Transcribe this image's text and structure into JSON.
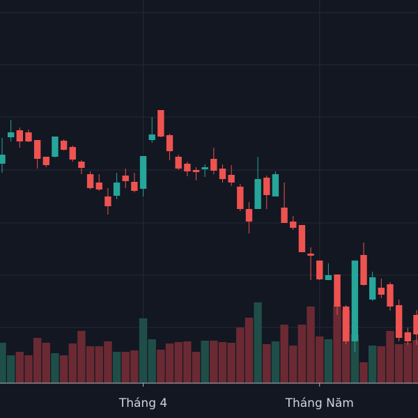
{
  "chart_data": {
    "type": "candlestick",
    "categories": [
      null,
      null,
      null,
      null,
      null,
      null,
      null,
      null,
      null,
      null,
      null,
      null,
      null,
      null,
      null,
      null,
      null,
      null,
      null,
      null,
      null,
      null,
      null,
      null,
      null,
      null,
      null,
      null,
      null,
      null,
      null,
      null,
      null,
      null,
      null,
      null,
      null,
      null,
      null,
      null,
      null,
      null,
      null,
      null,
      null,
      null,
      null,
      null
    ],
    "open": [
      315,
      353,
      363,
      360,
      349,
      325,
      325,
      348,
      339,
      318,
      300,
      288,
      268,
      269,
      298,
      289,
      279,
      349,
      392,
      356,
      325,
      315,
      306,
      307,
      322,
      308,
      299,
      282,
      250,
      250,
      295,
      268,
      252,
      232,
      227,
      186,
      176,
      148,
      156,
      110,
      60,
      184,
      120,
      137,
      142,
      112,
      73,
      98
    ],
    "close": [
      328,
      360,
      347,
      347,
      322,
      313,
      354,
      335,
      321,
      309,
      280,
      278,
      254,
      288,
      290,
      276,
      326,
      357,
      354,
      333,
      308,
      304,
      303,
      310,
      305,
      293,
      288,
      250,
      232,
      293,
      270,
      300,
      230,
      223,
      188,
      183,
      149,
      155,
      110,
      60,
      176,
      141,
      152,
      127,
      110,
      65,
      60,
      70
    ],
    "high": [
      352,
      378,
      367,
      364,
      349,
      325,
      354,
      350,
      341,
      320,
      304,
      300,
      280,
      302,
      308,
      302,
      326,
      382,
      392,
      358,
      328,
      318,
      310,
      314,
      338,
      314,
      313,
      286,
      260,
      325,
      298,
      304,
      288,
      240,
      227,
      195,
      176,
      172,
      156,
      112,
      176,
      202,
      160,
      150,
      145,
      120,
      80,
      105
    ],
    "low": [
      302,
      347,
      338,
      346,
      308,
      310,
      324,
      334,
      318,
      300,
      278,
      276,
      242,
      264,
      280,
      274,
      268,
      345,
      353,
      320,
      306,
      297,
      291,
      296,
      300,
      288,
      283,
      247,
      215,
      250,
      250,
      268,
      230,
      220,
      188,
      148,
      148,
      148,
      98,
      56,
      45,
      140,
      118,
      122,
      104,
      60,
      55,
      55
    ],
    "volume": [
      58,
      40,
      45,
      40,
      65,
      58,
      43,
      40,
      57,
      75,
      53,
      53,
      60,
      45,
      45,
      47,
      93,
      63,
      48,
      57,
      59,
      60,
      45,
      61,
      61,
      59,
      58,
      80,
      94,
      116,
      56,
      60,
      84,
      54,
      84,
      110,
      67,
      63,
      112,
      105,
      70,
      30,
      54,
      53,
      75,
      56,
      58,
      62
    ],
    "up_color": "#26a69a",
    "down_color": "#ef5350",
    "volume_up_color": "#1f4e48",
    "volume_down_color": "#6b2a33",
    "xlim": [
      -0.237,
      47.16
    ],
    "ylim": [
      0,
      550
    ],
    "volume_lim": [
      0,
      550
    ],
    "yticks": [
      80,
      155,
      230,
      306,
      382,
      457,
      532
    ],
    "xticks": [
      {
        "value": 16,
        "label": "Tháng 4"
      },
      {
        "value": 36,
        "label": "Tháng Năm"
      }
    ],
    "grid": true
  }
}
